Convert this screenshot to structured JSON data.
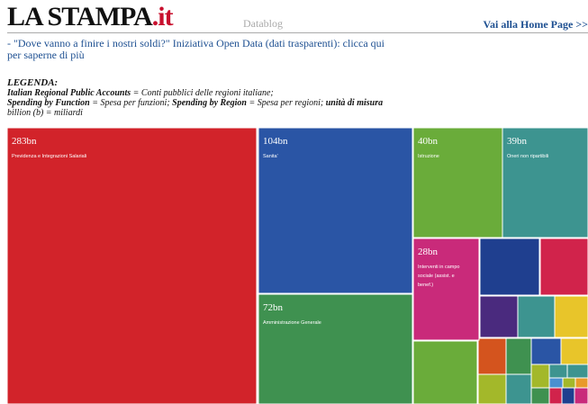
{
  "header": {
    "logo": "LA STAMPA",
    "logo_suffix": ".it",
    "section": "Datablog",
    "home_link": "Vai alla Home Page >>"
  },
  "intro": "- \"Dove vanno a finire i nostri soldi?\" Iniziativa Open Data (dati trasparenti): clicca qui per saperne di più",
  "legend": {
    "title": "LEGENDA:",
    "segments": [
      {
        "text": "Italian Regional Public Accounts",
        "bold": true
      },
      {
        "text": " = Conti pubblici delle regioni italiane;",
        "bold": false,
        "break": true
      },
      {
        "text": "Spending by Function",
        "bold": true
      },
      {
        "text": " = Spesa per funzioni; ",
        "bold": false
      },
      {
        "text": "Spending by Region",
        "bold": true
      },
      {
        "text": " = Spesa per regioni; ",
        "bold": false
      },
      {
        "text": "unità di misura",
        "bold": true
      },
      {
        "text": " billion (b) = miliardi",
        "bold": false
      }
    ]
  },
  "treemap": {
    "tiles": [
      {
        "value": "283bn",
        "label": "Previdenza e Integrazioni Salariali",
        "color": "#d2232a"
      },
      {
        "value": "104bn",
        "label": "Sanita'",
        "color": "#2a55a5"
      },
      {
        "value": "72bn",
        "label": "Amministrazione Generale",
        "color": "#3f9150"
      },
      {
        "value": "40bn",
        "label": "Istruzione",
        "color": "#6aac3a"
      },
      {
        "value": "39bn",
        "label": "Oneri non ripartibili",
        "color": "#3d9490"
      },
      {
        "value": "28bn",
        "label": "Interventi in campo sociale (assist. e benef.)",
        "color": "#c92a7a"
      }
    ]
  }
}
